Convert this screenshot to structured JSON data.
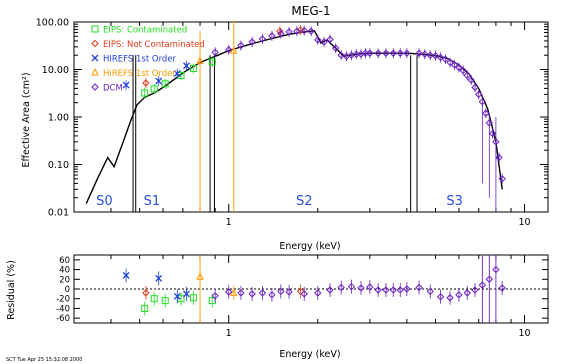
{
  "footer": "SCT Tue Apr 25 15:32:08 2000",
  "chart_data": [
    {
      "type": "scatter",
      "title": "MEG-1",
      "xlabel": "Energy (keV)",
      "ylabel": "Effective Area (cm²)",
      "xscale": "log",
      "yscale": "log",
      "xlim": [
        0.3,
        12
      ],
      "ylim": [
        0.01,
        100
      ],
      "xticks": [
        "1",
        "10"
      ],
      "yticks": [
        "0.01",
        "0.10",
        "1.00",
        "10.00",
        "100.00"
      ],
      "grid": false,
      "legend_position": "top-left",
      "regions": [
        {
          "label": "S0",
          "x": 0.38
        },
        {
          "label": "S1",
          "x": 0.55
        },
        {
          "label": "S2",
          "x": 1.8
        },
        {
          "label": "S3",
          "x": 5.8
        }
      ],
      "chip_gaps": [
        {
          "x0": 0.475,
          "x1": 0.485
        },
        {
          "x0": 0.865,
          "x1": 0.895
        },
        {
          "x0": 4.12,
          "x1": 4.33
        }
      ],
      "model_curve": [
        [
          0.33,
          0.015
        ],
        [
          0.36,
          0.05
        ],
        [
          0.39,
          0.14
        ],
        [
          0.41,
          0.09
        ],
        [
          0.44,
          0.3
        ],
        [
          0.47,
          0.95
        ],
        [
          0.49,
          1.8
        ],
        [
          0.52,
          2.6
        ],
        [
          0.56,
          3.2
        ],
        [
          0.6,
          4.2
        ],
        [
          0.65,
          6.0
        ],
        [
          0.7,
          8.5
        ],
        [
          0.75,
          11
        ],
        [
          0.8,
          14
        ],
        [
          0.86,
          17
        ],
        [
          0.92,
          20
        ],
        [
          1.0,
          25
        ],
        [
          1.2,
          35
        ],
        [
          1.4,
          45
        ],
        [
          1.6,
          55
        ],
        [
          1.8,
          62
        ],
        [
          1.95,
          65
        ],
        [
          2.05,
          36
        ],
        [
          2.15,
          42
        ],
        [
          2.3,
          28
        ],
        [
          2.45,
          19
        ],
        [
          2.7,
          21
        ],
        [
          3.0,
          22
        ],
        [
          3.5,
          22
        ],
        [
          4.0,
          22
        ],
        [
          4.5,
          21
        ],
        [
          5.0,
          19.5
        ],
        [
          5.5,
          17
        ],
        [
          6.0,
          12.5
        ],
        [
          6.5,
          8
        ],
        [
          7.0,
          4
        ],
        [
          7.5,
          1.5
        ],
        [
          8.0,
          0.3
        ],
        [
          8.4,
          0.03
        ]
      ],
      "series": [
        {
          "name": "EIPS: Contaminated",
          "color": "#22dd22",
          "marker": "square",
          "x": [
            0.52,
            0.56,
            0.61,
            0.69,
            0.76,
            0.88
          ],
          "y": [
            3.2,
            3.9,
            5.0,
            7.5,
            10.5,
            14.5
          ]
        },
        {
          "name": "EIPS: Not Contaminated",
          "color": "#e23a1a",
          "marker": "diamond",
          "x": [
            0.525,
            1.49,
            1.75
          ],
          "y": [
            5.2,
            64,
            68
          ]
        },
        {
          "name": "HIREFS 1st Order",
          "color": "#2040e0",
          "marker": "x",
          "x": [
            0.45,
            0.58,
            0.67,
            0.72
          ],
          "y": [
            4.7,
            5.7,
            8.2,
            12.0
          ]
        },
        {
          "name": "HiREFS 1st Order",
          "color": "#ff9900",
          "marker": "triangle",
          "x": [
            0.8,
            1.04
          ],
          "y": [
            15,
            25
          ]
        },
        {
          "name": "DCM",
          "color": "#6a1fc4",
          "marker": "diamond",
          "x": [
            0.9,
            1.0,
            1.1,
            1.2,
            1.3,
            1.4,
            1.5,
            1.6,
            1.7,
            1.8,
            1.9,
            2.0,
            2.1,
            2.2,
            2.3,
            2.4,
            2.5,
            2.6,
            2.7,
            2.8,
            2.9,
            3.0,
            3.2,
            3.4,
            3.6,
            3.8,
            4.0,
            4.4,
            4.6,
            4.8,
            5.0,
            5.2,
            5.4,
            5.6,
            5.8,
            6.0,
            6.2,
            6.4,
            6.6,
            6.8,
            7.0,
            7.2,
            7.4,
            7.6,
            7.8,
            8.0,
            8.2,
            8.4
          ],
          "y": [
            23,
            26,
            32,
            38,
            44,
            51,
            57,
            62,
            64,
            66,
            64,
            42,
            38,
            43,
            28,
            20,
            19,
            20,
            21,
            21,
            22,
            22,
            22,
            22,
            22,
            22,
            22,
            22,
            21,
            20,
            19.5,
            18,
            16.5,
            14,
            12.5,
            11,
            9.5,
            7.5,
            6,
            4.2,
            3,
            2.1,
            1.2,
            0.75,
            0.45,
            0.3,
            0.14,
            0.05
          ]
        }
      ]
    },
    {
      "type": "scatter",
      "xlabel": "Energy (keV)",
      "ylabel": "Residual (%)",
      "xscale": "log",
      "xlim": [
        0.3,
        12
      ],
      "ylim": [
        -70,
        70
      ],
      "xticks": [
        "1",
        "10"
      ],
      "yticks": [
        "-60",
        "-40",
        "-20",
        "0",
        "20",
        "40",
        "60"
      ],
      "reference_line": 0,
      "series": [
        {
          "name": "EIPS: Contaminated",
          "color": "#22dd22",
          "marker": "square",
          "x": [
            0.52,
            0.56,
            0.61,
            0.69,
            0.76,
            0.88
          ],
          "y": [
            -40,
            -20,
            -24,
            -20,
            -18,
            -24
          ]
        },
        {
          "name": "EIPS: Not Contaminated",
          "color": "#e23a1a",
          "marker": "diamond",
          "x": [
            0.525,
            1.75
          ],
          "y": [
            -8,
            -5
          ]
        },
        {
          "name": "HIREFS 1st Order",
          "color": "#2040e0",
          "marker": "x",
          "x": [
            0.45,
            0.58,
            0.67,
            0.72
          ],
          "y": [
            28,
            22,
            -15,
            -10
          ]
        },
        {
          "name": "HiREFS 1st Order",
          "color": "#ff9900",
          "marker": "triangle",
          "x": [
            0.8,
            1.04
          ],
          "y": [
            25,
            -8
          ]
        },
        {
          "name": "DCM",
          "color": "#6a1fc4",
          "marker": "diamond",
          "x": [
            0.9,
            1.0,
            1.1,
            1.2,
            1.3,
            1.4,
            1.5,
            1.6,
            1.8,
            2.0,
            2.2,
            2.4,
            2.6,
            2.8,
            3.0,
            3.2,
            3.4,
            3.6,
            3.8,
            4.0,
            4.4,
            4.8,
            5.2,
            5.6,
            6.0,
            6.4,
            6.8,
            7.2,
            7.6,
            8.0,
            8.4
          ],
          "y": [
            -14,
            -6,
            -8,
            -10,
            -8,
            -12,
            -5,
            -6,
            -10,
            -8,
            -2,
            3,
            5,
            2,
            4,
            -2,
            -2,
            -2,
            -2,
            0,
            3,
            -5,
            -16,
            -18,
            -12,
            -8,
            -2,
            8,
            20,
            40,
            2
          ]
        }
      ]
    }
  ]
}
